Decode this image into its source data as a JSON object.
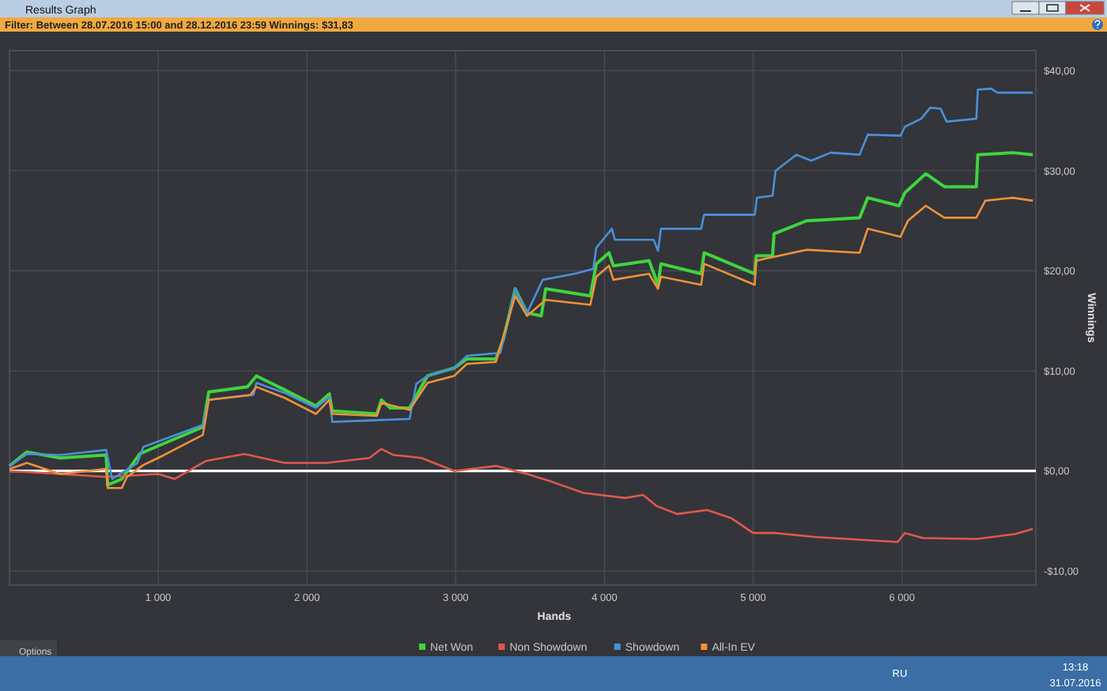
{
  "chart_data": {
    "type": "line",
    "title": "Results Graph",
    "subtitle": "Filter: Between 28.07.2016 15:00 and 28.12.2016 23:59 Winnings: $31,83",
    "xlabel": "Hands",
    "ylabel": "Winnings",
    "xlim": [
      0,
      6900
    ],
    "ylim": [
      -11.4,
      42
    ],
    "xticks": [
      {
        "value": 1000,
        "label": "1 000"
      },
      {
        "value": 2000,
        "label": "2 000"
      },
      {
        "value": 3000,
        "label": "3 000"
      },
      {
        "value": 4000,
        "label": "4 000"
      },
      {
        "value": 5000,
        "label": "5 000"
      },
      {
        "value": 6000,
        "label": "6 000"
      }
    ],
    "yticks": [
      {
        "value": -10,
        "label": "-$10,00"
      },
      {
        "value": 0,
        "label": "$0,00"
      },
      {
        "value": 10,
        "label": "$10,00"
      },
      {
        "value": 20,
        "label": "$20,00"
      },
      {
        "value": 30,
        "label": "$30,00"
      },
      {
        "value": 40,
        "label": "$40,00"
      }
    ],
    "grid": true,
    "legend": "bottom",
    "marker": "none",
    "line_style": "solid",
    "ref_lines": [
      {
        "axis": "y",
        "value": 0,
        "color": "#ffffff"
      }
    ],
    "annotations": [
      "Options",
      "RU",
      "13:18",
      "31.07.2016"
    ],
    "series": [
      {
        "name": "Net Won",
        "color": "#3fd43f",
        "x": [
          0,
          117,
          340,
          650,
          660,
          755,
          875,
          1000,
          1300,
          1340,
          1600,
          1660,
          1850,
          2060,
          2150,
          2170,
          2470,
          2500,
          2560,
          2690,
          2810,
          2990,
          3075,
          3270,
          3320,
          3400,
          3480,
          3575,
          3605,
          3905,
          3945,
          4030,
          4060,
          4300,
          4360,
          4380,
          4650,
          4670,
          5010,
          5020,
          5130,
          5140,
          5360,
          5715,
          5770,
          5980,
          6020,
          6160,
          6285,
          6500,
          6510,
          6745,
          6880
        ],
        "values": [
          0.5,
          1.9,
          1.3,
          1.6,
          -1.4,
          -0.8,
          1.7,
          2.5,
          4.4,
          7.9,
          8.4,
          9.5,
          8.1,
          6.5,
          7.7,
          6.0,
          5.7,
          7.1,
          6.3,
          6.3,
          9.5,
          10.3,
          11.2,
          11.2,
          13.1,
          18.2,
          15.8,
          15.5,
          18.2,
          17.5,
          20.7,
          21.8,
          20.5,
          21.0,
          18.6,
          20.7,
          19.7,
          21.8,
          19.7,
          21.5,
          21.5,
          23.7,
          25.0,
          25.3,
          27.3,
          26.5,
          27.8,
          29.7,
          28.4,
          28.4,
          31.6,
          31.8,
          31.6
        ]
      },
      {
        "name": "Non Showdown",
        "color": "#e0584e",
        "x": [
          0,
          340,
          650,
          1000,
          1110,
          1320,
          1580,
          1850,
          2130,
          2420,
          2500,
          2580,
          2770,
          2990,
          3270,
          3480,
          3650,
          3860,
          4140,
          4260,
          4350,
          4490,
          4690,
          4850,
          5000,
          5150,
          5420,
          5970,
          6020,
          6140,
          6500,
          6760,
          6880
        ],
        "values": [
          0,
          -0.3,
          -0.6,
          -0.3,
          -0.8,
          1.0,
          1.7,
          0.8,
          0.8,
          1.3,
          2.2,
          1.6,
          1.3,
          0,
          0.5,
          -0.3,
          -1.1,
          -2.2,
          -2.7,
          -2.4,
          -3.5,
          -4.3,
          -3.9,
          -4.7,
          -6.2,
          -6.2,
          -6.6,
          -7.1,
          -6.2,
          -6.7,
          -6.8,
          -6.3,
          -5.8
        ]
      },
      {
        "name": "Showdown",
        "color": "#4a90d9",
        "x": [
          0,
          117,
          340,
          650,
          690,
          860,
          900,
          1300,
          1340,
          1640,
          1660,
          1850,
          2060,
          2150,
          2170,
          2690,
          2735,
          2810,
          2990,
          3075,
          3300,
          3400,
          3480,
          3585,
          3800,
          3925,
          3945,
          4050,
          4070,
          4330,
          4360,
          4380,
          4650,
          4670,
          5010,
          5025,
          5130,
          5150,
          5290,
          5390,
          5520,
          5715,
          5770,
          5990,
          6020,
          6130,
          6190,
          6260,
          6300,
          6500,
          6510,
          6600,
          6640,
          6880
        ],
        "values": [
          0.5,
          1.7,
          1.6,
          2.1,
          -0.8,
          0.8,
          2.4,
          4.6,
          7.1,
          7.6,
          8.8,
          7.8,
          6.3,
          7.4,
          4.9,
          5.2,
          8.7,
          9.5,
          10.3,
          11.5,
          11.8,
          18.2,
          15.8,
          19.1,
          19.7,
          20.2,
          22.3,
          24.2,
          23.1,
          23.1,
          22.0,
          24.2,
          24.2,
          25.6,
          25.6,
          27.3,
          27.5,
          30.0,
          31.6,
          31.0,
          31.8,
          31.6,
          33.6,
          33.5,
          34.4,
          35.2,
          36.3,
          36.2,
          34.9,
          35.2,
          38.1,
          38.2,
          37.8,
          37.8
        ]
      },
      {
        "name": "All-In EV",
        "color": "#f0923a",
        "x": [
          0,
          117,
          340,
          650,
          660,
          755,
          790,
          900,
          1000,
          1300,
          1340,
          1620,
          1660,
          1850,
          2060,
          2150,
          2170,
          2470,
          2500,
          2690,
          2810,
          2990,
          3075,
          3270,
          3400,
          3480,
          3605,
          3905,
          3945,
          4030,
          4060,
          4300,
          4360,
          4380,
          4650,
          4670,
          5010,
          5020,
          5360,
          5715,
          5770,
          5990,
          6040,
          6160,
          6285,
          6500,
          6560,
          6745,
          6880
        ],
        "values": [
          0.2,
          0.8,
          -0.3,
          0.2,
          -1.7,
          -1.7,
          -0.6,
          0.6,
          1.3,
          3.6,
          7.1,
          7.6,
          8.4,
          7.3,
          5.7,
          7.1,
          5.7,
          5.5,
          6.8,
          6.1,
          8.8,
          9.5,
          10.7,
          10.9,
          17.5,
          15.5,
          17.1,
          16.6,
          19.4,
          20.5,
          19.1,
          19.7,
          18.2,
          19.4,
          18.6,
          20.7,
          18.6,
          21.0,
          22.1,
          21.8,
          24.2,
          23.4,
          25.0,
          26.5,
          25.3,
          25.3,
          27.0,
          27.3,
          27.0
        ]
      }
    ]
  }
}
